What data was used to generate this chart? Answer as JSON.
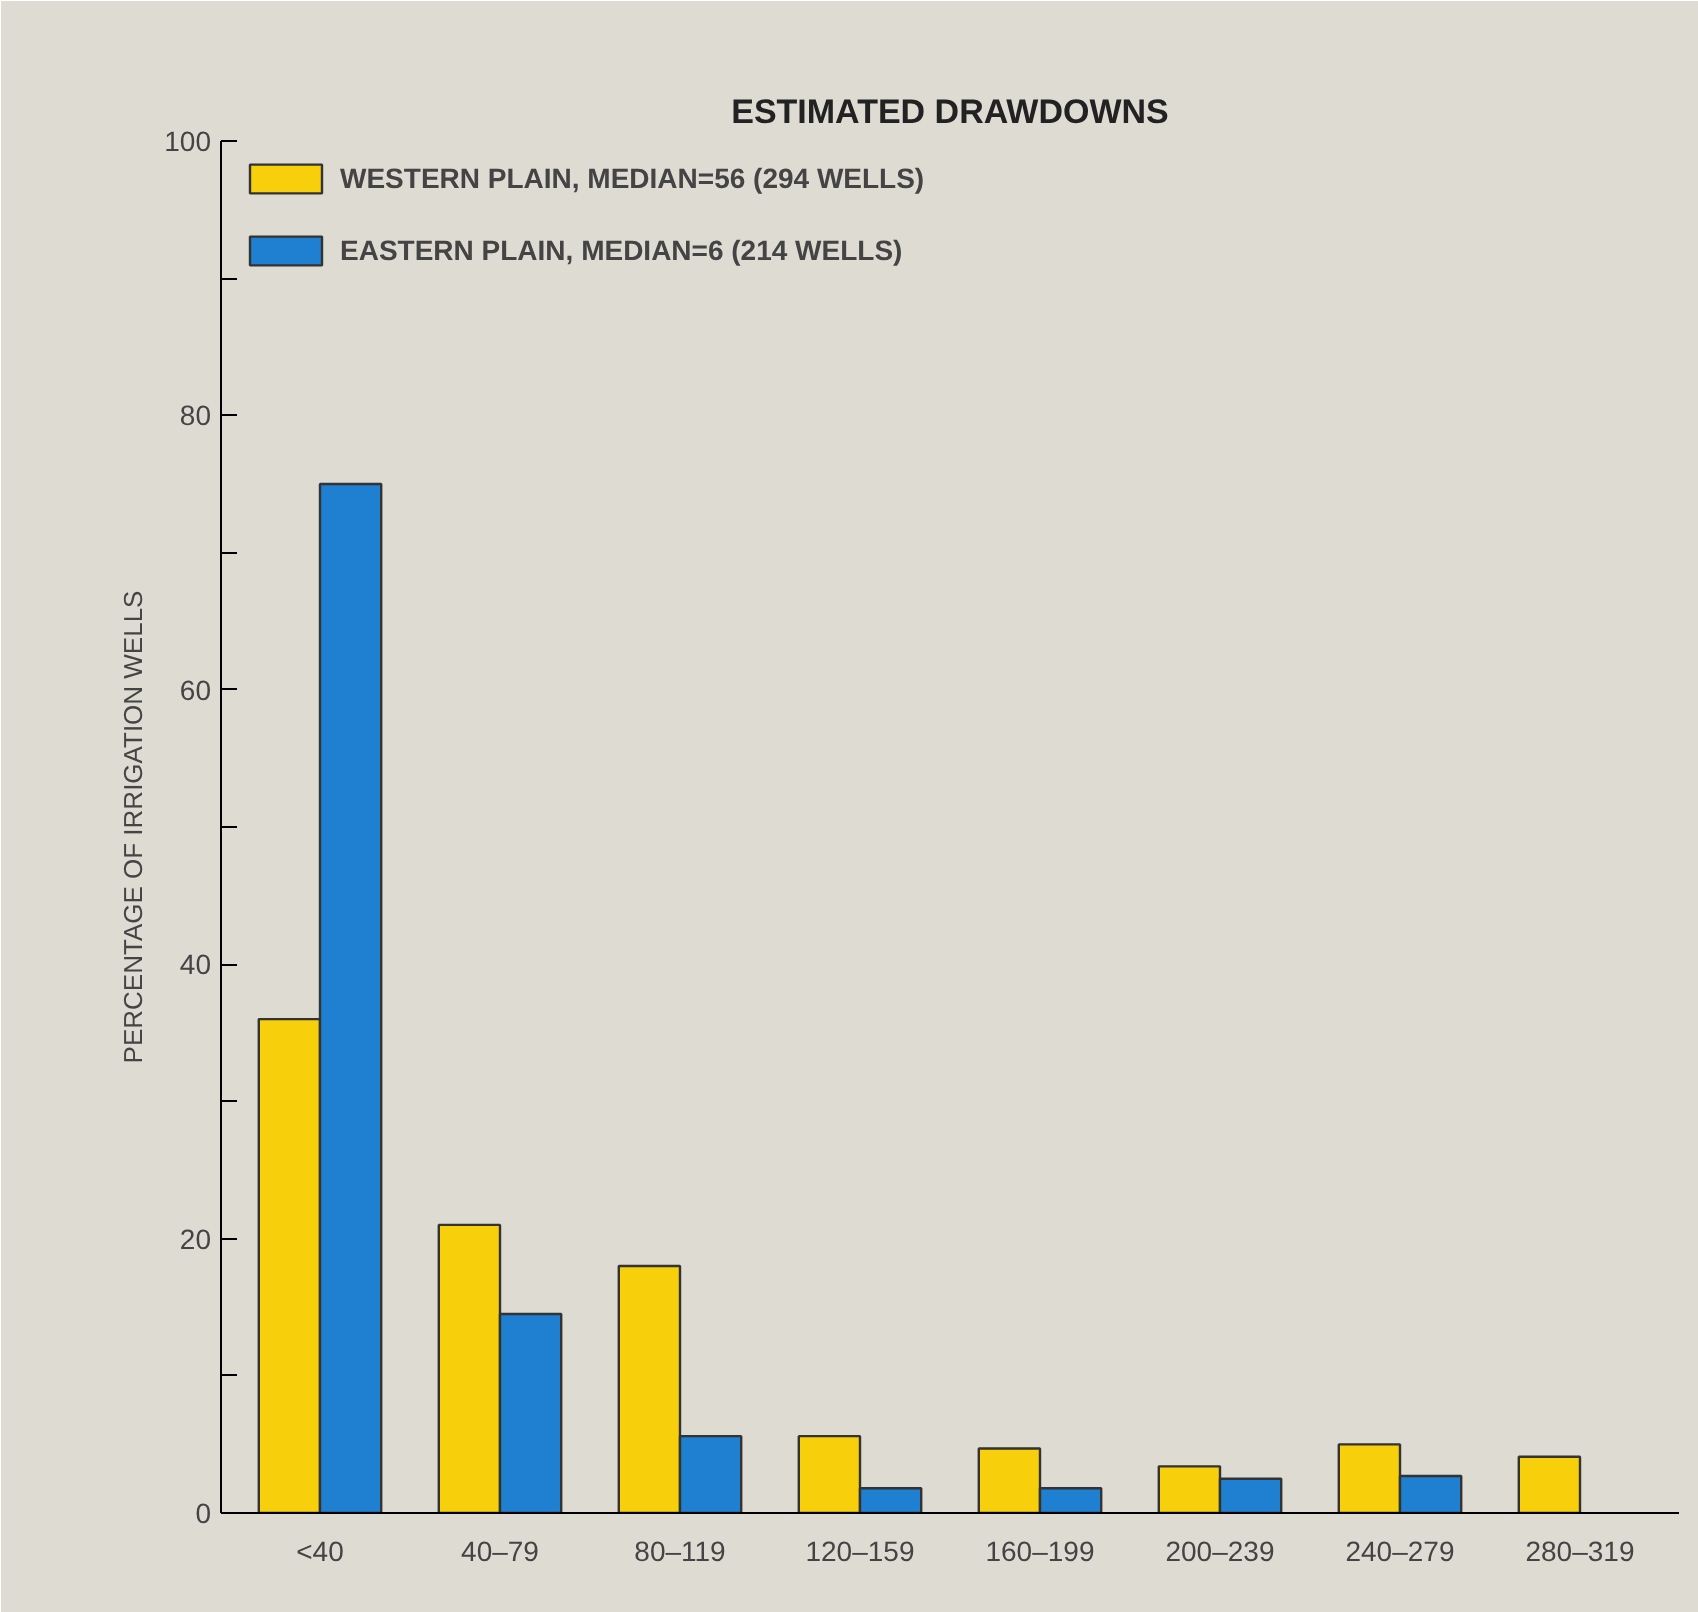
{
  "chart_data": {
    "type": "bar",
    "title": "ESTIMATED DRAWDOWNS",
    "ylabel": "PERCENTAGE OF IRRIGATION WELLS",
    "categories": [
      "<40",
      "40–79",
      "80–119",
      "120–159",
      "160–199",
      "200–239",
      "240–279",
      "280–319"
    ],
    "series": [
      {
        "name": "WESTERN PLAIN, MEDIAN=56 (294 WELLS)",
        "color": "#f7cf0a",
        "values": [
          36,
          21,
          18,
          5.6,
          4.7,
          3.4,
          5,
          4.1
        ]
      },
      {
        "name": "EASTERN PLAIN, MEDIAN=6 (214 WELLS)",
        "color": "#1f7fd0",
        "values": [
          75,
          14.5,
          5.6,
          1.8,
          1.8,
          2.5,
          2.7,
          null
        ]
      }
    ],
    "ylim": [
      0,
      100
    ],
    "yticks": [
      0,
      {
        "value": 10,
        "label": null
      },
      20,
      {
        "value": 30,
        "label": null
      },
      40,
      {
        "value": 50,
        "label": null
      },
      60,
      {
        "value": 70,
        "label": null
      },
      80,
      {
        "value": 90,
        "label": null
      },
      100
    ],
    "grid": false,
    "legend": "top left"
  }
}
